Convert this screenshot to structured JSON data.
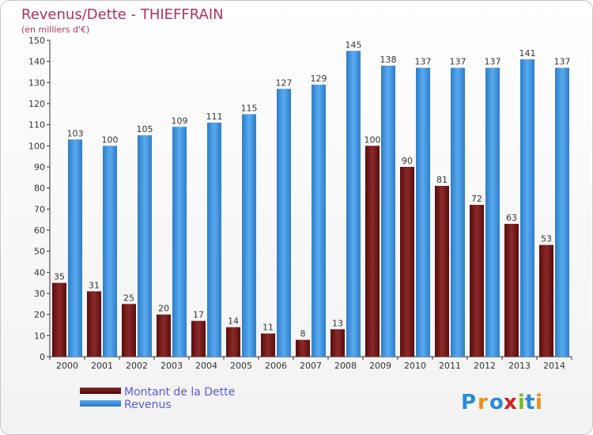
{
  "chart_data": {
    "type": "bar",
    "title": "Revenus/Dette - THIEFFRAIN",
    "subtitle": "(en milliers d'€)",
    "categories": [
      "2000",
      "2001",
      "2002",
      "2003",
      "2004",
      "2005",
      "2006",
      "2007",
      "2008",
      "2009",
      "2010",
      "2011",
      "2012",
      "2013",
      "2014"
    ],
    "series": [
      {
        "name": "Montant de la Dette",
        "color": "#7a1a1a",
        "values": [
          35,
          31,
          25,
          20,
          17,
          14,
          11,
          8,
          13,
          100,
          90,
          81,
          72,
          63,
          53
        ]
      },
      {
        "name": "Revenus",
        "color": "#3e8fd8",
        "values": [
          103,
          100,
          105,
          109,
          111,
          115,
          127,
          129,
          145,
          138,
          137,
          137,
          137,
          141,
          137
        ]
      }
    ],
    "ylim": [
      0,
      150
    ],
    "ytick_step": 10,
    "grid": false,
    "legend_position": "bottom-left"
  },
  "brand": {
    "name": "Proxiti",
    "letters": [
      "P",
      "r",
      "o",
      "x",
      "i",
      "t",
      "i"
    ]
  },
  "colors": {
    "title": "#b03060",
    "legend_text": "#5a5ae0"
  }
}
